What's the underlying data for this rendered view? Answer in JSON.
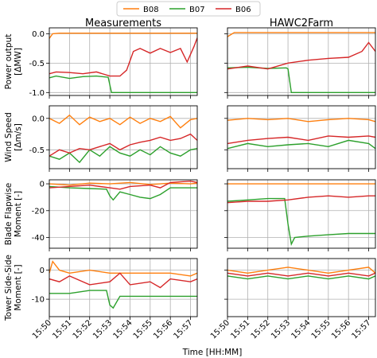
{
  "chart_data": {
    "type": "line",
    "legend": {
      "placement": "top-center",
      "entries": [
        {
          "name": "B08",
          "color": "#ff7f0e"
        },
        {
          "name": "B07",
          "color": "#2ca02c"
        },
        {
          "name": "B06",
          "color": "#d62728"
        }
      ]
    },
    "xlabel": "Time [HH:MM]",
    "xticks": [
      "15:50",
      "15:51",
      "15:52",
      "15:53",
      "15:54",
      "15:55",
      "15:56",
      "15:57"
    ],
    "xlim": [
      "15:50",
      "15:57:20"
    ],
    "columns": [
      {
        "title": "Measurements"
      },
      {
        "title": "HAWC2Farm"
      }
    ],
    "rows": [
      {
        "ylabel": [
          "Power output",
          "[ΔMW]"
        ],
        "ylim": [
          -1.05,
          0.1
        ],
        "yticks": [
          "0.0",
          "-0.5",
          "-1.0"
        ],
        "yvalues": [
          0.0,
          -0.5,
          -1.0
        ]
      },
      {
        "ylabel": [
          "Wind Speed",
          "[Δm/s]"
        ],
        "ylim": [
          -0.8,
          0.2
        ],
        "yticks": [
          "0.0",
          "-0.5"
        ],
        "yvalues": [
          0.0,
          -0.5
        ]
      },
      {
        "ylabel": [
          "Blade Flapwise",
          "Moment [-]"
        ],
        "ylim": [
          -48,
          3
        ],
        "yticks": [
          "0",
          "-20",
          "-40"
        ],
        "yvalues": [
          0,
          -20,
          -40
        ]
      },
      {
        "ylabel": [
          "Tower Side-Side",
          "Moment [-]"
        ],
        "ylim": [
          -16,
          4
        ],
        "yticks": [
          "0",
          "-10"
        ],
        "yvalues": [
          0,
          -10
        ]
      }
    ],
    "grid": true,
    "series_panels": [
      {
        "row": 0,
        "col": 0,
        "series": [
          {
            "name": "B08",
            "time": [
              "15:50:00",
              "15:50:10",
              "15:50:30",
              "15:51:00",
              "15:52:00",
              "15:53:00",
              "15:54:00",
              "15:55:00",
              "15:56:00",
              "15:57:00",
              "15:57:20"
            ],
            "values": [
              -0.08,
              0.0,
              0.01,
              0.01,
              0.01,
              0.01,
              0.01,
              0.01,
              0.01,
              0.01,
              0.01
            ]
          },
          {
            "name": "B07",
            "time": [
              "15:50:00",
              "15:50:20",
              "15:51:00",
              "15:51:40",
              "15:52:20",
              "15:52:55",
              "15:53:05",
              "15:53:30",
              "15:54:00",
              "15:56:00",
              "15:57:20"
            ],
            "values": [
              -0.75,
              -0.72,
              -0.76,
              -0.73,
              -0.72,
              -0.74,
              -1.0,
              -1.0,
              -1.0,
              -1.0,
              -1.0
            ]
          },
          {
            "name": "B06",
            "time": [
              "15:50:00",
              "15:50:20",
              "15:51:00",
              "15:51:40",
              "15:52:20",
              "15:53:00",
              "15:53:30",
              "15:53:50",
              "15:54:10",
              "15:54:30",
              "15:55:00",
              "15:55:30",
              "15:56:00",
              "15:56:30",
              "15:56:50",
              "15:57:10",
              "15:57:20"
            ],
            "values": [
              -0.68,
              -0.65,
              -0.66,
              -0.68,
              -0.65,
              -0.72,
              -0.72,
              -0.62,
              -0.3,
              -0.25,
              -0.33,
              -0.25,
              -0.32,
              -0.25,
              -0.48,
              -0.22,
              -0.07
            ]
          }
        ]
      },
      {
        "row": 1,
        "col": 0,
        "series": [
          {
            "name": "B08",
            "time": [
              "15:50:00",
              "15:50:30",
              "15:51:00",
              "15:51:30",
              "15:52:00",
              "15:52:30",
              "15:53:00",
              "15:53:30",
              "15:54:00",
              "15:54:30",
              "15:55:00",
              "15:55:30",
              "15:56:00",
              "15:56:30",
              "15:57:00",
              "15:57:20"
            ],
            "values": [
              0.0,
              -0.08,
              0.05,
              -0.1,
              0.02,
              -0.05,
              0.0,
              -0.1,
              0.02,
              -0.08,
              0.0,
              -0.05,
              0.03,
              -0.15,
              -0.02,
              0.0
            ]
          },
          {
            "name": "B07",
            "time": [
              "15:50:00",
              "15:50:30",
              "15:51:00",
              "15:51:30",
              "15:52:00",
              "15:52:30",
              "15:53:00",
              "15:53:30",
              "15:54:00",
              "15:54:30",
              "15:55:00",
              "15:55:30",
              "15:56:00",
              "15:56:30",
              "15:57:00",
              "15:57:20"
            ],
            "values": [
              -0.6,
              -0.65,
              -0.55,
              -0.7,
              -0.5,
              -0.6,
              -0.45,
              -0.55,
              -0.6,
              -0.5,
              -0.58,
              -0.45,
              -0.55,
              -0.6,
              -0.5,
              -0.48
            ]
          },
          {
            "name": "B06",
            "time": [
              "15:50:00",
              "15:50:30",
              "15:51:00",
              "15:51:30",
              "15:52:00",
              "15:52:30",
              "15:53:00",
              "15:53:30",
              "15:54:00",
              "15:54:30",
              "15:55:00",
              "15:55:30",
              "15:56:00",
              "15:56:30",
              "15:57:00",
              "15:57:20"
            ],
            "values": [
              -0.6,
              -0.5,
              -0.55,
              -0.48,
              -0.5,
              -0.45,
              -0.4,
              -0.5,
              -0.42,
              -0.38,
              -0.35,
              -0.3,
              -0.35,
              -0.32,
              -0.25,
              -0.35
            ]
          }
        ]
      },
      {
        "row": 2,
        "col": 0,
        "series": [
          {
            "name": "B08",
            "time": [
              "15:50:00",
              "15:51:00",
              "15:52:00",
              "15:53:00",
              "15:54:00",
              "15:55:00",
              "15:56:00",
              "15:57:00",
              "15:57:20"
            ],
            "values": [
              0.0,
              -1.0,
              0.5,
              0.0,
              1.0,
              -0.5,
              0.5,
              0.0,
              0.5
            ]
          },
          {
            "name": "B07",
            "time": [
              "15:50:00",
              "15:51:00",
              "15:52:00",
              "15:52:50",
              "15:53:00",
              "15:53:10",
              "15:53:30",
              "15:54:00",
              "15:54:30",
              "15:55:00",
              "15:55:30",
              "15:56:00",
              "15:57:00",
              "15:57:20"
            ],
            "values": [
              -2.0,
              -3.0,
              -3.5,
              -4.0,
              -9.0,
              -12.0,
              -6.0,
              -8.0,
              -10.0,
              -11.0,
              -8.0,
              -3.0,
              -3.0,
              -3.0
            ]
          },
          {
            "name": "B06",
            "time": [
              "15:50:00",
              "15:51:00",
              "15:52:00",
              "15:53:00",
              "15:53:30",
              "15:54:00",
              "15:55:00",
              "15:55:30",
              "15:56:00",
              "15:57:00",
              "15:57:20"
            ],
            "values": [
              -3.0,
              -2.0,
              -1.0,
              -3.0,
              -4.0,
              -2.0,
              -1.0,
              -3.0,
              1.0,
              2.0,
              1.0
            ]
          }
        ]
      },
      {
        "row": 3,
        "col": 0,
        "series": [
          {
            "name": "B08",
            "time": [
              "15:50:00",
              "15:50:10",
              "15:50:30",
              "15:51:00",
              "15:52:00",
              "15:53:00",
              "15:54:00",
              "15:55:00",
              "15:56:00",
              "15:57:00",
              "15:57:20"
            ],
            "values": [
              -1.0,
              3.0,
              0.0,
              -1.0,
              0.0,
              -1.0,
              -1.0,
              -1.0,
              -1.0,
              -2.0,
              -1.0
            ]
          },
          {
            "name": "B07",
            "time": [
              "15:50:00",
              "15:51:00",
              "15:52:00",
              "15:52:50",
              "15:53:00",
              "15:53:10",
              "15:53:30",
              "15:54:00",
              "15:55:00",
              "15:56:00",
              "15:57:00",
              "15:57:20"
            ],
            "values": [
              -8.0,
              -8.0,
              -7.0,
              -7.0,
              -12.0,
              -13.0,
              -9.0,
              -9.0,
              -9.0,
              -9.0,
              -9.0,
              -9.0
            ]
          },
          {
            "name": "B06",
            "time": [
              "15:50:00",
              "15:50:30",
              "15:51:00",
              "15:52:00",
              "15:53:00",
              "15:53:30",
              "15:54:00",
              "15:55:00",
              "15:55:30",
              "15:56:00",
              "15:57:00",
              "15:57:20"
            ],
            "values": [
              -3.0,
              -4.0,
              -2.0,
              -5.0,
              -4.0,
              -1.0,
              -5.0,
              -4.0,
              -6.0,
              -3.0,
              -4.0,
              -3.0
            ]
          }
        ]
      },
      {
        "row": 0,
        "col": 1,
        "series": [
          {
            "name": "B08",
            "time": [
              "15:50:00",
              "15:50:20",
              "15:51:00",
              "15:52:00",
              "15:53:00",
              "15:54:00",
              "15:55:00",
              "15:56:00",
              "15:57:00",
              "15:57:20"
            ],
            "values": [
              -0.05,
              0.02,
              0.02,
              0.02,
              0.02,
              0.02,
              0.02,
              0.02,
              0.02,
              0.02
            ]
          },
          {
            "name": "B07",
            "time": [
              "15:50:00",
              "15:51:00",
              "15:52:00",
              "15:52:55",
              "15:53:00",
              "15:53:10",
              "15:54:00",
              "15:56:00",
              "15:57:20"
            ],
            "values": [
              -0.58,
              -0.57,
              -0.59,
              -0.58,
              -0.6,
              -1.0,
              -1.0,
              -1.0,
              -1.0
            ]
          },
          {
            "name": "B06",
            "time": [
              "15:50:00",
              "15:51:00",
              "15:52:00",
              "15:53:00",
              "15:54:00",
              "15:55:00",
              "15:56:00",
              "15:56:40",
              "15:57:00",
              "15:57:20"
            ],
            "values": [
              -0.6,
              -0.55,
              -0.6,
              -0.5,
              -0.45,
              -0.42,
              -0.4,
              -0.3,
              -0.15,
              -0.3
            ]
          }
        ]
      },
      {
        "row": 1,
        "col": 1,
        "series": [
          {
            "name": "B08",
            "time": [
              "15:50:00",
              "15:51:00",
              "15:52:00",
              "15:53:00",
              "15:54:00",
              "15:55:00",
              "15:56:00",
              "15:57:00",
              "15:57:20"
            ],
            "values": [
              -0.03,
              0.0,
              -0.02,
              0.0,
              -0.05,
              -0.02,
              0.0,
              -0.02,
              -0.05
            ]
          },
          {
            "name": "B07",
            "time": [
              "15:50:00",
              "15:51:00",
              "15:52:00",
              "15:53:00",
              "15:54:00",
              "15:55:00",
              "15:56:00",
              "15:57:00",
              "15:57:20"
            ],
            "values": [
              -0.48,
              -0.4,
              -0.45,
              -0.42,
              -0.4,
              -0.45,
              -0.35,
              -0.4,
              -0.48
            ]
          },
          {
            "name": "B06",
            "time": [
              "15:50:00",
              "15:51:00",
              "15:52:00",
              "15:53:00",
              "15:54:00",
              "15:55:00",
              "15:56:00",
              "15:57:00",
              "15:57:20"
            ],
            "values": [
              -0.4,
              -0.35,
              -0.32,
              -0.3,
              -0.35,
              -0.28,
              -0.3,
              -0.28,
              -0.3
            ]
          }
        ]
      },
      {
        "row": 2,
        "col": 1,
        "series": [
          {
            "name": "B08",
            "time": [
              "15:50:00",
              "15:51:00",
              "15:52:00",
              "15:53:00",
              "15:54:00",
              "15:55:00",
              "15:56:00",
              "15:57:00",
              "15:57:20"
            ],
            "values": [
              0.0,
              0.0,
              0.0,
              0.0,
              0.0,
              0.0,
              0.0,
              0.0,
              0.0
            ]
          },
          {
            "name": "B07",
            "time": [
              "15:50:00",
              "15:51:00",
              "15:52:00",
              "15:52:50",
              "15:53:00",
              "15:53:10",
              "15:53:20",
              "15:54:00",
              "15:55:00",
              "15:56:00",
              "15:57:00",
              "15:57:20"
            ],
            "values": [
              -13.0,
              -12.0,
              -11.0,
              -11.0,
              -30.0,
              -45.0,
              -40.0,
              -39.0,
              -38.0,
              -37.0,
              -37.0,
              -37.0
            ]
          },
          {
            "name": "B06",
            "time": [
              "15:50:00",
              "15:51:00",
              "15:52:00",
              "15:53:00",
              "15:54:00",
              "15:55:00",
              "15:56:00",
              "15:57:00",
              "15:57:20"
            ],
            "values": [
              -14.0,
              -13.0,
              -13.0,
              -12.0,
              -10.0,
              -9.0,
              -10.0,
              -9.0,
              -9.0
            ]
          }
        ]
      },
      {
        "row": 3,
        "col": 1,
        "series": [
          {
            "name": "B08",
            "time": [
              "15:50:00",
              "15:51:00",
              "15:52:00",
              "15:53:00",
              "15:54:00",
              "15:55:00",
              "15:56:00",
              "15:57:00",
              "15:57:20"
            ],
            "values": [
              0.0,
              -1.0,
              0.0,
              1.0,
              0.0,
              -1.0,
              0.0,
              1.0,
              -1.0
            ]
          },
          {
            "name": "B07",
            "time": [
              "15:50:00",
              "15:51:00",
              "15:52:00",
              "15:53:00",
              "15:54:00",
              "15:55:00",
              "15:56:00",
              "15:57:00",
              "15:57:20"
            ],
            "values": [
              -2.0,
              -3.0,
              -2.0,
              -3.0,
              -2.0,
              -3.0,
              -2.0,
              -3.0,
              -2.0
            ]
          },
          {
            "name": "B06",
            "time": [
              "15:50:00",
              "15:51:00",
              "15:52:00",
              "15:53:00",
              "15:54:00",
              "15:55:00",
              "15:56:00",
              "15:57:00",
              "15:57:20"
            ],
            "values": [
              -1.0,
              -2.0,
              -1.0,
              -2.0,
              -1.0,
              -2.0,
              -1.0,
              -2.0,
              -1.0
            ]
          }
        ]
      }
    ]
  }
}
